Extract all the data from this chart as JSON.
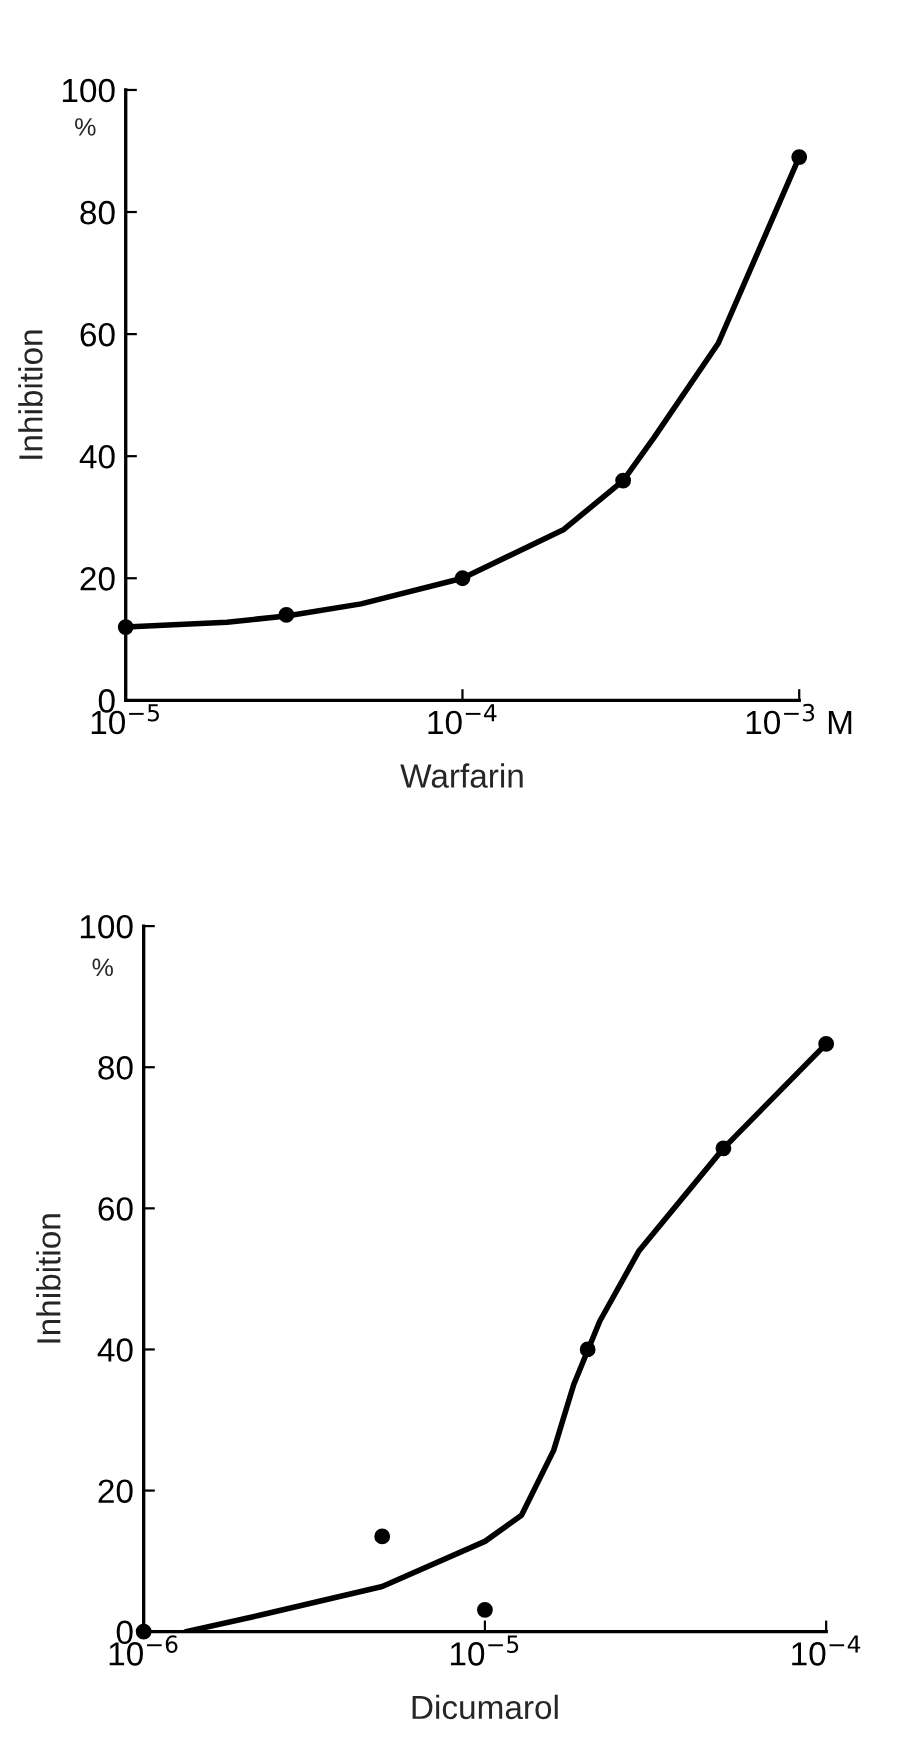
{
  "chart_data": [
    {
      "type": "scatter",
      "xlabel": "Warfarin",
      "ylabel": "Inhibition",
      "annotations": [
        "%"
      ],
      "log": "x",
      "grid": false,
      "legend": false,
      "xlim": [
        1e-05,
        0.001
      ],
      "xticks": [
        {
          "value": 1e-05,
          "label": "10$^{−5}$"
        },
        {
          "value": 0.0001,
          "label": "10$^{−4}$"
        },
        {
          "value": 0.001,
          "label": "10$^{−3}$ M"
        }
      ],
      "ylim": [
        0,
        100
      ],
      "yticks": [
        0,
        20,
        40,
        60,
        80,
        100
      ],
      "series": [
        {
          "color": "#000000",
          "marker": "circle",
          "x": [
            1e-05,
            3e-05,
            0.0001,
            0.0003,
            0.001
          ],
          "values": [
            12,
            14,
            20,
            36,
            89
          ]
        },
        {
          "type": "line",
          "color": "#000000",
          "marker": "none",
          "line_style": "solid",
          "x": [
            1e-05,
            2e-05,
            3e-05,
            5e-05,
            0.0001,
            0.0002,
            0.0003,
            0.00037,
            0.000575,
            0.001
          ],
          "values": [
            12,
            12.8,
            13.8,
            15.8,
            20,
            28,
            36,
            43,
            58.5,
            89
          ]
        }
      ]
    },
    {
      "type": "scatter",
      "xlabel": "Dicumarol",
      "ylabel": "Inhibition",
      "annotations": [
        "%"
      ],
      "log": "x",
      "grid": false,
      "legend": false,
      "xlim": [
        1e-06,
        0.0001
      ],
      "xticks": [
        {
          "value": 1e-06,
          "label": "10$^{−6}$"
        },
        {
          "value": 1e-05,
          "label": "10$^{−5}$"
        },
        {
          "value": 0.0001,
          "label": "10$^{−4}$"
        }
      ],
      "ylim": [
        0,
        100
      ],
      "yticks": [
        0,
        20,
        40,
        60,
        80,
        100
      ],
      "series": [
        {
          "color": "#000000",
          "marker": "circle",
          "x": [
            1e-06,
            5e-06,
            1e-05,
            2e-05,
            5e-05,
            0.0001
          ],
          "values": [
            0,
            13.5,
            3.1,
            40,
            68.5,
            83.3
          ]
        },
        {
          "type": "line",
          "color": "#000000",
          "marker": "none",
          "line_style": "solid",
          "x": [
            1.33e-06,
            2.17e-06,
            5e-06,
            1e-05,
            1.28e-05,
            1.59e-05,
            1.82e-05,
            2.17e-05,
            2.83e-05,
            5e-05,
            0.0001
          ],
          "values": [
            0,
            2.3,
            6.4,
            12.8,
            16.5,
            25.7,
            35,
            44,
            54,
            68.5,
            83.3
          ]
        }
      ]
    }
  ]
}
